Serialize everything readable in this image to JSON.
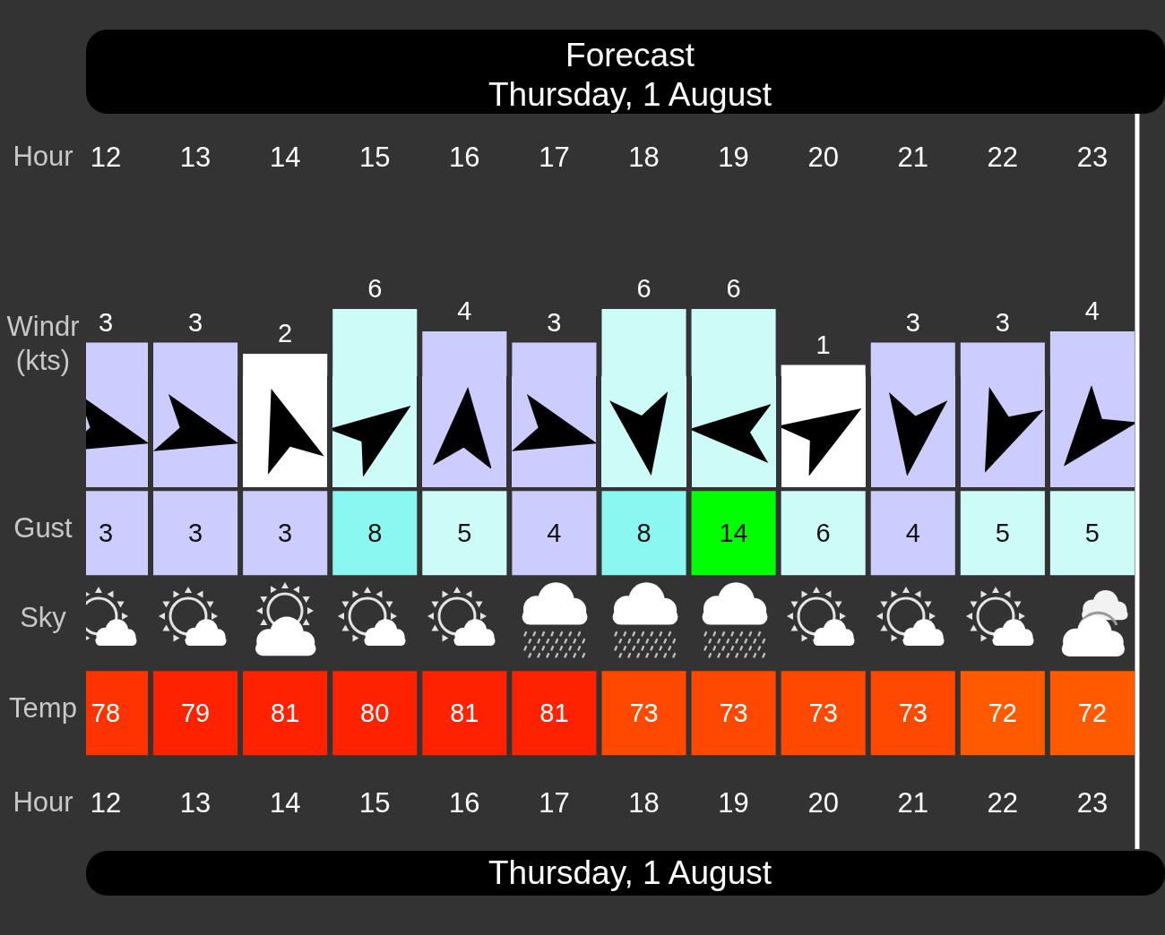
{
  "chart_data": [
    {
      "type": "bar",
      "title": "Forecast",
      "subtitle": "Thursday, 1 August",
      "xlabel": "Hour",
      "ylabel": "Windr (kts)",
      "x": [
        12,
        13,
        14,
        15,
        16,
        17,
        18,
        19,
        20,
        21,
        22,
        23
      ],
      "values": [
        3,
        3,
        2,
        6,
        4,
        3,
        6,
        6,
        1,
        3,
        3,
        4
      ],
      "colors": [
        "#ccccff",
        "#ccccff",
        "#ffffff",
        "#ccfbf8",
        "#ccccff",
        "#ccccff",
        "#ccfbf8",
        "#ccfbf8",
        "#ffffff",
        "#ccccff",
        "#ccccff",
        "#ccccff"
      ],
      "xlim": [
        12,
        23.81
      ],
      "xticks": [
        12,
        13,
        14,
        15,
        16,
        17,
        18,
        19,
        20,
        21,
        22,
        23
      ],
      "data_labels": true,
      "tick_labels": "x",
      "ref_lines": [
        {
          "axis": "x",
          "value": 23.5,
          "color": "#ffffff"
        }
      ]
    },
    {
      "type": "heatmap",
      "xlabel": "Hour",
      "x": [
        12,
        13,
        14,
        15,
        16,
        17,
        18,
        19,
        20,
        21,
        22,
        23
      ],
      "xlim": [
        12,
        23.81
      ],
      "xticks": [
        12,
        13,
        14,
        15,
        16,
        17,
        18,
        19,
        20,
        21,
        22,
        23
      ],
      "y_categories": [
        "Gust",
        "Sky",
        "Temp"
      ],
      "cells": [
        [
          3,
          3,
          3,
          8,
          5,
          4,
          8,
          14,
          6,
          4,
          5,
          5
        ],
        [
          null,
          null,
          null,
          null,
          null,
          null,
          null,
          null,
          null,
          null,
          null,
          null
        ],
        [
          78,
          79,
          81,
          80,
          81,
          81,
          73,
          73,
          73,
          73,
          72,
          72
        ]
      ],
      "colors": [
        [
          "#ccccff",
          "#ccccff",
          "#ccccff",
          "#8af7f0",
          "#ccfbf8",
          "#ccccff",
          "#8af7f0",
          "#00ff00",
          "#ccfbf8",
          "#ccccff",
          "#ccfbf8",
          "#ccfbf8"
        ],
        [
          null,
          null,
          null,
          null,
          null,
          null,
          null,
          null,
          null,
          null,
          null,
          null
        ],
        [
          "#ff3300",
          "#ff2200",
          "#ff2200",
          "#ff2200",
          "#ff2200",
          "#ff2200",
          "#ff4800",
          "#ff4800",
          "#ff4800",
          "#ff4800",
          "#ff5a00",
          "#ff5a00"
        ]
      ],
      "data_labels": true,
      "ref_lines": [
        {
          "axis": "x",
          "value": 23.5,
          "color": "#ffffff"
        }
      ],
      "annotations": [
        "Thursday, 1 August"
      ]
    }
  ]
}
